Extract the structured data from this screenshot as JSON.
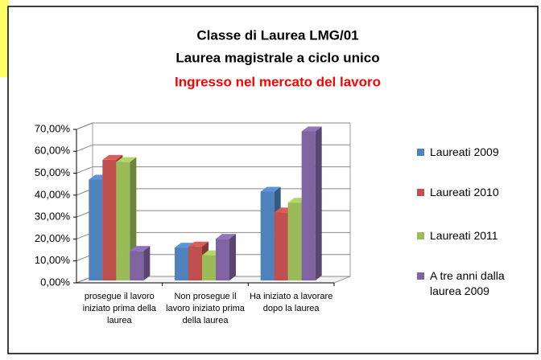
{
  "chart_data": {
    "type": "bar3d",
    "title": "Classe di Laurea LMG/01",
    "subtitle": "Laurea magistrale a ciclo unico",
    "subtitle2": "Ingresso nel mercato del lavoro",
    "categories": [
      "prosegue il lavoro iniziato prima della laurea",
      "Non prosegue il lavoro iniziato prima della laurea",
      "Ha iniziato a lavorare dopo la laurea"
    ],
    "series": [
      {
        "name": "Laureati 2009",
        "color": "#4f81bd",
        "values": [
          46,
          15,
          40.5
        ]
      },
      {
        "name": "Laureati 2010",
        "color": "#c0504d",
        "values": [
          55,
          15.5,
          31
        ]
      },
      {
        "name": "Laureati 2011",
        "color": "#9bbb59",
        "values": [
          54,
          11.5,
          35.5
        ]
      },
      {
        "name": "A tre anni dalla laurea 2009",
        "color": "#8064a2",
        "values": [
          13.5,
          19,
          68
        ]
      }
    ],
    "ylim": [
      0,
      70
    ],
    "yticks": [
      {
        "value": 0,
        "label": "0,00%"
      },
      {
        "value": 10,
        "label": "10,00%"
      },
      {
        "value": 20,
        "label": "20,00%"
      },
      {
        "value": 30,
        "label": "30,00%"
      },
      {
        "value": 40,
        "label": "40,00%"
      },
      {
        "value": 50,
        "label": "50,00%"
      },
      {
        "value": 60,
        "label": "60,00%"
      },
      {
        "value": 70,
        "label": "70,00%"
      }
    ],
    "grid": true,
    "legend": "right"
  }
}
